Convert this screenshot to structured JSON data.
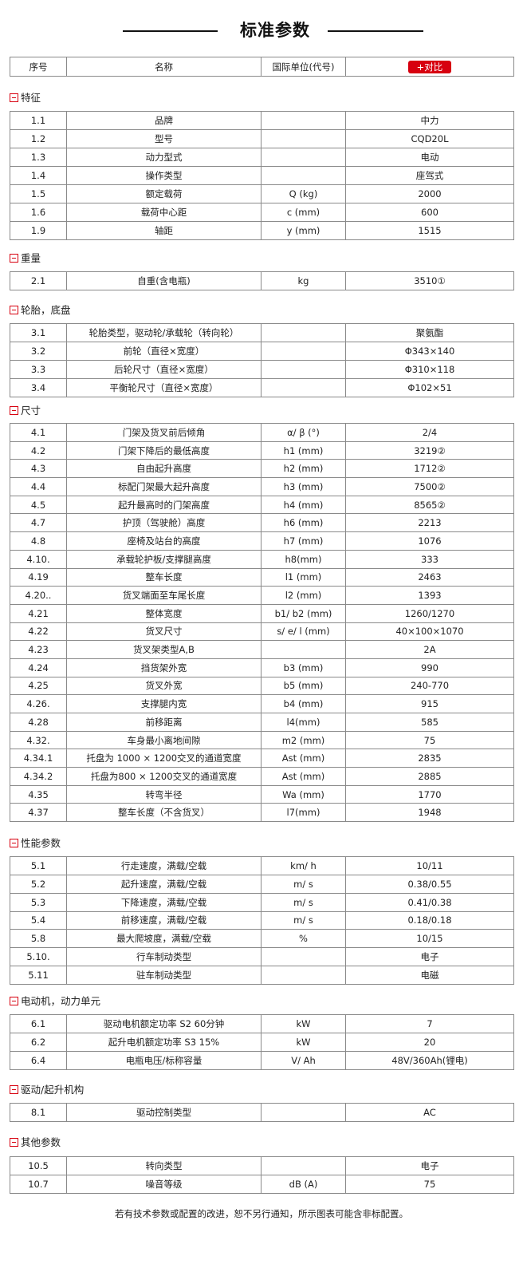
{
  "title": "标准参数",
  "header": {
    "col_no": "序号",
    "col_name": "名称",
    "col_unit": "国际单位(代号)",
    "compare_button": "+对比"
  },
  "colors": {
    "accent": "#d7000f",
    "border": "#8a8a8a"
  },
  "sections": [
    {
      "title": "特征",
      "rows": [
        [
          "1.1",
          "品牌",
          "",
          "中力"
        ],
        [
          "1.2",
          "型号",
          "",
          "CQD20L"
        ],
        [
          "1.3",
          "动力型式",
          "",
          "电动"
        ],
        [
          "1.4",
          "操作类型",
          "",
          "座驾式"
        ],
        [
          "1.5",
          "额定载荷",
          "Q (kg)",
          "2000"
        ],
        [
          "1.6",
          "载荷中心距",
          "c (mm)",
          "600"
        ],
        [
          "1.9",
          "轴距",
          "y (mm)",
          "1515"
        ]
      ]
    },
    {
      "title": "重量",
      "rows": [
        [
          "2.1",
          "自重(含电瓶)",
          "kg",
          "3510①"
        ]
      ]
    },
    {
      "title": "轮胎，底盘",
      "rows": [
        [
          "3.1",
          "轮胎类型，驱动轮/承载轮（转向轮）",
          "",
          "聚氨酯"
        ],
        [
          "3.2",
          "前轮（直径×宽度）",
          "",
          "Φ343×140"
        ],
        [
          "3.3",
          "后轮尺寸（直径×宽度）",
          "",
          "Φ310×118"
        ],
        [
          "3.4",
          "平衡轮尺寸（直径×宽度）",
          "",
          "Φ102×51"
        ]
      ]
    },
    {
      "title": "尺寸",
      "rows": [
        [
          "4.1",
          "门架及货叉前后倾角",
          "α/ β (°)",
          "2/4"
        ],
        [
          "4.2",
          "门架下降后的最低高度",
          "h1 (mm)",
          "3219②"
        ],
        [
          "4.3",
          "自由起升高度",
          "h2 (mm)",
          "1712②"
        ],
        [
          "4.4",
          "标配门架最大起升高度",
          "h3 (mm)",
          "7500②"
        ],
        [
          "4.5",
          "起升最高时的门架高度",
          "h4 (mm)",
          "8565②"
        ],
        [
          "4.7",
          "护顶（驾驶舱）高度",
          "h6 (mm)",
          "2213"
        ],
        [
          "4.8",
          "座椅及站台的高度",
          "h7 (mm)",
          "1076"
        ],
        [
          "4.10.",
          "承载轮护板/支撑腿高度",
          "h8(mm)",
          "333"
        ],
        [
          "4.19",
          "整车长度",
          "l1 (mm)",
          "2463"
        ],
        [
          "4.20..",
          "货叉端面至车尾长度",
          "l2 (mm)",
          "1393"
        ],
        [
          "4.21",
          "整体宽度",
          "b1/ b2 (mm)",
          "1260/1270"
        ],
        [
          "4.22",
          "货叉尺寸",
          "s/ e/ l (mm)",
          "40×100×1070"
        ],
        [
          "4.23",
          "货叉架类型A,B",
          "",
          "2A"
        ],
        [
          "4.24",
          "挡货架外宽",
          "b3 (mm)",
          "990"
        ],
        [
          "4.25",
          "货叉外宽",
          "b5 (mm)",
          "240-770"
        ],
        [
          "4.26.",
          "支撑腿内宽",
          "b4 (mm)",
          "915"
        ],
        [
          "4.28",
          "前移距离",
          "l4(mm)",
          "585"
        ],
        [
          "4.32.",
          "车身最小离地间隙",
          "m2 (mm)",
          "75"
        ],
        [
          "4.34.1",
          "托盘为 1000 × 1200交叉的通道宽度",
          "Ast (mm)",
          "2835"
        ],
        [
          "4.34.2",
          "托盘为800 × 1200交叉的通道宽度",
          "Ast (mm)",
          "2885"
        ],
        [
          "4.35",
          "转弯半径",
          "Wa (mm)",
          "1770"
        ],
        [
          "4.37",
          "整车长度（不含货叉）",
          "l7(mm)",
          "1948"
        ]
      ]
    },
    {
      "title": "性能参数",
      "rows": [
        [
          "5.1",
          "行走速度，满载/空载",
          "km/ h",
          "10/11"
        ],
        [
          "5.2",
          "起升速度，满载/空载",
          "m/ s",
          "0.38/0.55"
        ],
        [
          "5.3",
          "下降速度，满载/空载",
          "m/ s",
          "0.41/0.38"
        ],
        [
          "5.4",
          "前移速度，满载/空载",
          "m/ s",
          "0.18/0.18"
        ],
        [
          "5.8",
          "最大爬坡度，满载/空载",
          "%",
          "10/15"
        ],
        [
          "5.10.",
          "行车制动类型",
          "",
          "电子"
        ],
        [
          "5.11",
          "驻车制动类型",
          "",
          "电磁"
        ]
      ]
    },
    {
      "title": "电动机，动力单元",
      "rows": [
        [
          "6.1",
          "驱动电机额定功率 S2 60分钟",
          "kW",
          "7"
        ],
        [
          "6.2",
          "起升电机额定功率 S3 15%",
          "kW",
          "20"
        ],
        [
          "6.4",
          "电瓶电压/标称容量",
          "V/ Ah",
          "48V/360Ah(锂电)"
        ]
      ]
    },
    {
      "title": "驱动/起升机构",
      "rows": [
        [
          "8.1",
          "驱动控制类型",
          "",
          "AC"
        ]
      ]
    },
    {
      "title": "其他参数",
      "rows": [
        [
          "10.5",
          "转向类型",
          "",
          "电子"
        ],
        [
          "10.7",
          "噪音等级",
          "dB (A)",
          "75"
        ]
      ]
    }
  ],
  "footer": "若有技术参数或配置的改进，恕不另行通知，所示图表可能含非标配置。"
}
